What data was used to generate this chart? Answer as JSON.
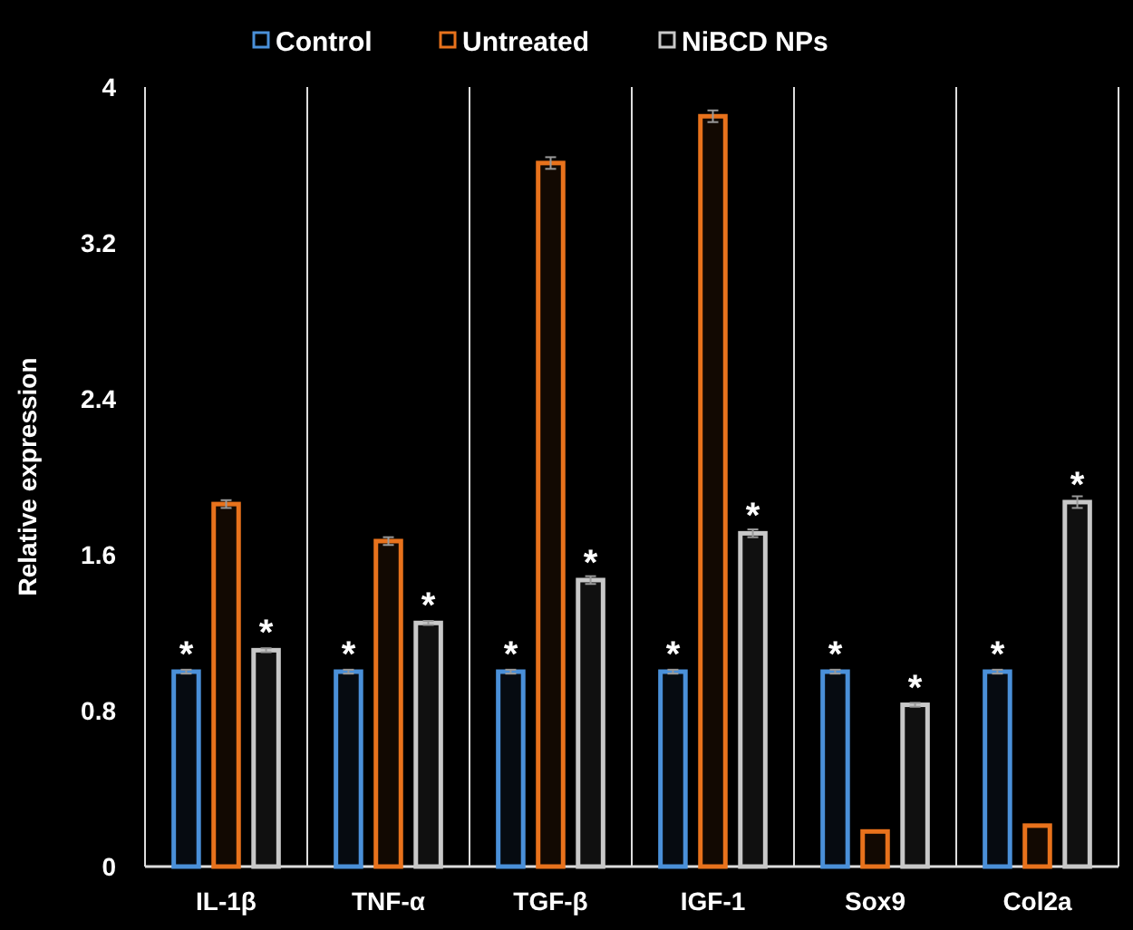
{
  "chart_data": {
    "type": "bar",
    "ylabel": "Relative expression",
    "categories": [
      "IL-1β",
      "TNF-α",
      "TGF-β",
      "IGF-1",
      "Sox9",
      "Col2a"
    ],
    "series": [
      {
        "name": "Control",
        "color": "#4a90d9",
        "values": [
          1,
          1,
          1,
          1,
          1,
          1
        ],
        "errors": [
          0.01,
          0.01,
          0.01,
          0.01,
          0.01,
          0.01
        ],
        "value_labels": [
          "*",
          "*",
          "*",
          "*",
          "*",
          "*"
        ]
      },
      {
        "name": "Untreated",
        "color": "#e8721c",
        "values": [
          1.86,
          1.67,
          3.61,
          3.85,
          0.18,
          0.21
        ],
        "errors": [
          0.02,
          0.02,
          0.03,
          0.03,
          null,
          null
        ]
      },
      {
        "name": "NiBCD NPs",
        "color": "#c8c8c8",
        "values": [
          1.11,
          1.25,
          1.47,
          1.71,
          0.83,
          1.87
        ],
        "errors": [
          0.01,
          0.01,
          0.02,
          0.02,
          0.01,
          0.03
        ],
        "value_labels": [
          "*",
          "*",
          "*",
          "*",
          "*",
          "*"
        ]
      }
    ],
    "ylim": [
      0,
      4
    ],
    "yticks": [
      0,
      0.8,
      1.6,
      2.4,
      3.2,
      4
    ],
    "grid": "x",
    "legend": "top"
  }
}
